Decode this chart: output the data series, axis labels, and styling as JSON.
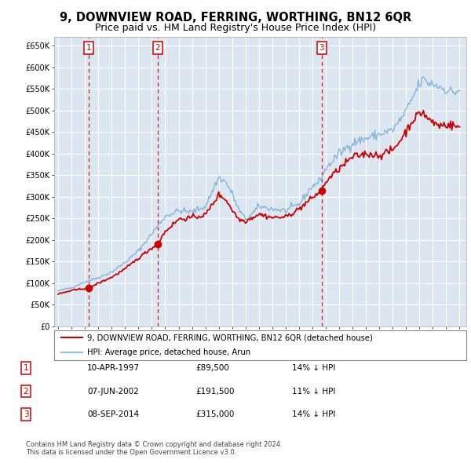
{
  "title": "9, DOWNVIEW ROAD, FERRING, WORTHING, BN12 6QR",
  "subtitle": "Price paid vs. HM Land Registry's House Price Index (HPI)",
  "title_fontsize": 10.5,
  "subtitle_fontsize": 9,
  "plot_bg_color": "#dce6f1",
  "grid_color": "#ffffff",
  "purchases": [
    {
      "date_year": 1997.28,
      "price": 89500,
      "label": "1"
    },
    {
      "date_year": 2002.44,
      "price": 191500,
      "label": "2"
    },
    {
      "date_year": 2014.69,
      "price": 315000,
      "label": "3"
    }
  ],
  "vline_dates": [
    1997.28,
    2002.44,
    2014.69
  ],
  "legend_entries": [
    {
      "label": "9, DOWNVIEW ROAD, FERRING, WORTHING, BN12 6QR (detached house)",
      "color": "#cc0000",
      "lw": 1.5
    },
    {
      "label": "HPI: Average price, detached house, Arun",
      "color": "#7ab0d4",
      "lw": 1.2
    }
  ],
  "table_rows": [
    {
      "num": "1",
      "date": "10-APR-1997",
      "price": "£89,500",
      "note": "14% ↓ HPI"
    },
    {
      "num": "2",
      "date": "07-JUN-2002",
      "price": "£191,500",
      "note": "11% ↓ HPI"
    },
    {
      "num": "3",
      "date": "08-SEP-2014",
      "price": "£315,000",
      "note": "14% ↓ HPI"
    }
  ],
  "footer": "Contains HM Land Registry data © Crown copyright and database right 2024.\nThis data is licensed under the Open Government Licence v3.0.",
  "ylim": [
    0,
    670000
  ],
  "xlim_start": 1994.7,
  "xlim_end": 2025.5,
  "yticks": [
    0,
    50000,
    100000,
    150000,
    200000,
    250000,
    300000,
    350000,
    400000,
    450000,
    500000,
    550000,
    600000,
    650000
  ],
  "ytick_labels": [
    "£0",
    "£50K",
    "£100K",
    "£150K",
    "£200K",
    "£250K",
    "£300K",
    "£350K",
    "£400K",
    "£450K",
    "£500K",
    "£550K",
    "£600K",
    "£650K"
  ],
  "xticks": [
    1995,
    1996,
    1997,
    1998,
    1999,
    2000,
    2001,
    2002,
    2003,
    2004,
    2005,
    2006,
    2007,
    2008,
    2009,
    2010,
    2011,
    2012,
    2013,
    2014,
    2015,
    2016,
    2017,
    2018,
    2019,
    2020,
    2021,
    2022,
    2023,
    2024,
    2025
  ],
  "red_color": "#cc0000",
  "blue_color": "#7ab0d4",
  "vline_color": "#cc0000"
}
